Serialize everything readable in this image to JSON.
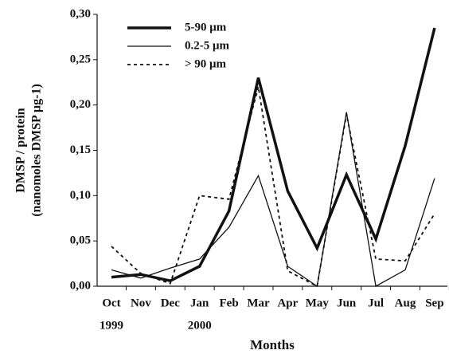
{
  "chart_data": {
    "type": "line",
    "y_label_lines": [
      "DMSP / protein",
      "(nanomoles DMSP µg-1)"
    ],
    "x_label": "Months",
    "categories": [
      "Oct",
      "Nov",
      "Dec",
      "Jan",
      "Feb",
      "Mar",
      "Apr",
      "May",
      "Jun",
      "Jul",
      "Aug",
      "Sep"
    ],
    "x_sublabels": [
      "1999",
      null,
      null,
      "2000",
      null,
      null,
      null,
      null,
      null,
      null,
      null,
      null
    ],
    "series": [
      {
        "name": "5-90 μm",
        "color": "#111111",
        "linewidth": 3.5,
        "linestyle": "solid",
        "values": [
          0.01,
          0.013,
          0.006,
          0.022,
          0.083,
          0.23,
          0.105,
          0.042,
          0.123,
          0.052,
          0.155,
          0.285
        ]
      },
      {
        "name": "0.2-5 μm",
        "color": "#111111",
        "linewidth": 1.3,
        "linestyle": "solid",
        "values": [
          0.018,
          0.009,
          0.02,
          0.03,
          0.065,
          0.122,
          0.022,
          0.0,
          0.192,
          0.0,
          0.018,
          0.119
        ]
      },
      {
        "name": "> 90 μm",
        "color": "#111111",
        "linewidth": 1.8,
        "linestyle": "dashed",
        "values": [
          0.044,
          0.014,
          0.003,
          0.1,
          0.096,
          0.22,
          0.017,
          0.0,
          0.19,
          0.03,
          0.028,
          0.08
        ]
      }
    ],
    "ylim": [
      0,
      0.3
    ],
    "yticks": [
      {
        "value": 0,
        "label": "0,00"
      },
      {
        "value": 0.05,
        "label": "0,05"
      },
      {
        "value": 0.1,
        "label": "0,10"
      },
      {
        "value": 0.15,
        "label": "0,15"
      },
      {
        "value": 0.2,
        "label": "0,20"
      },
      {
        "value": 0.25,
        "label": "0,25"
      },
      {
        "value": 0.3,
        "label": "0,30"
      }
    ],
    "grid": false,
    "legend": "upper-left"
  }
}
